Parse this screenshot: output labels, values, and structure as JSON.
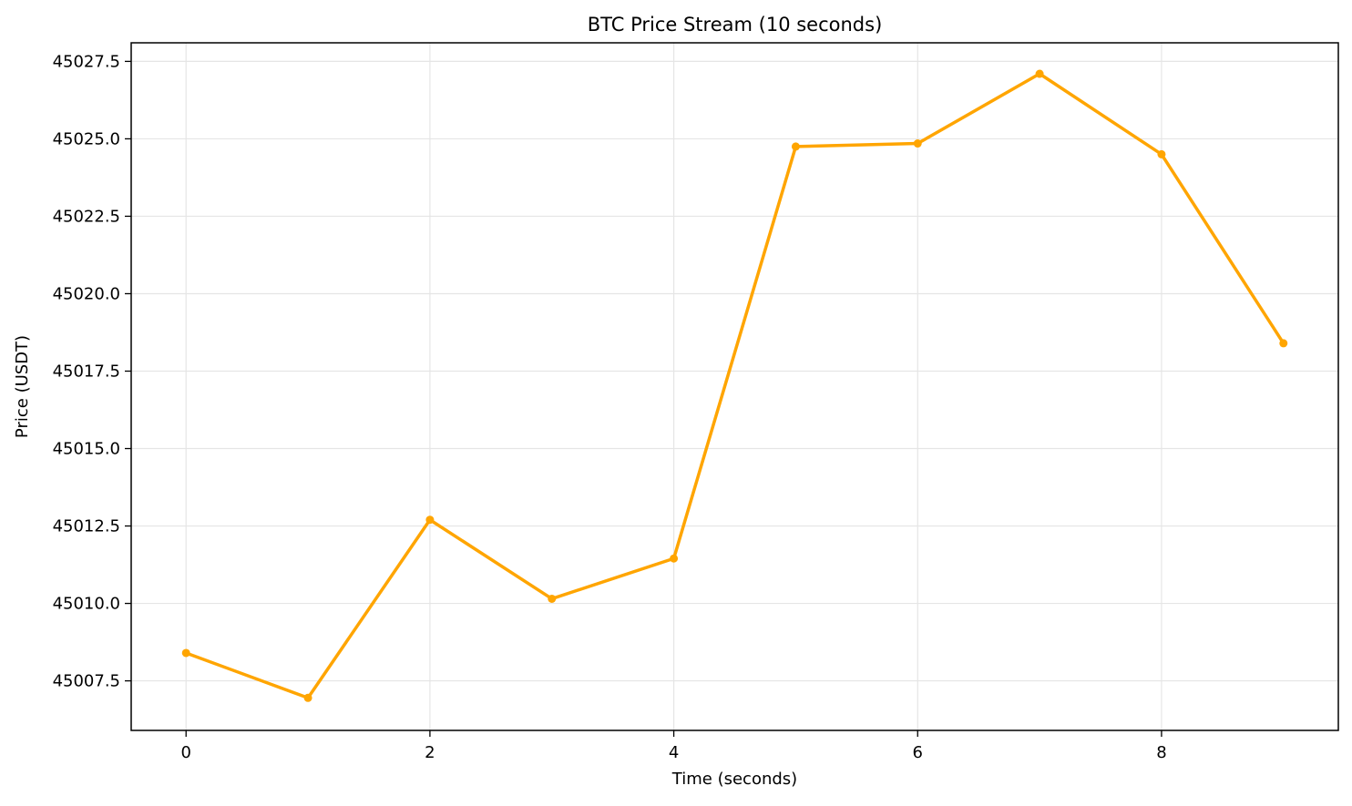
{
  "chart_data": {
    "type": "line",
    "title": "BTC Price Stream (10 seconds)",
    "xlabel": "Time (seconds)",
    "ylabel": "Price (USDT)",
    "xlim": [
      -0.45,
      9.45
    ],
    "ylim": [
      45005.9,
      45028.1
    ],
    "xticks": [
      0,
      2,
      4,
      6,
      8
    ],
    "xtick_labels": [
      "0",
      "2",
      "4",
      "6",
      "8"
    ],
    "yticks": [
      45007.5,
      45010.0,
      45012.5,
      45015.0,
      45017.5,
      45020.0,
      45022.5,
      45025.0,
      45027.5
    ],
    "ytick_labels": [
      "45007.5",
      "45010.0",
      "45012.5",
      "45015.0",
      "45017.5",
      "45020.0",
      "45022.5",
      "45025.0",
      "45027.5"
    ],
    "grid": true,
    "series": [
      {
        "color": "#FFA500",
        "marker": "circle",
        "x": [
          0,
          1,
          2,
          3,
          4,
          5,
          6,
          7,
          8,
          9
        ],
        "y": [
          45008.4,
          45006.95,
          45012.7,
          45010.15,
          45011.45,
          45024.75,
          45024.85,
          45027.1,
          45024.5,
          45018.4
        ]
      }
    ]
  }
}
